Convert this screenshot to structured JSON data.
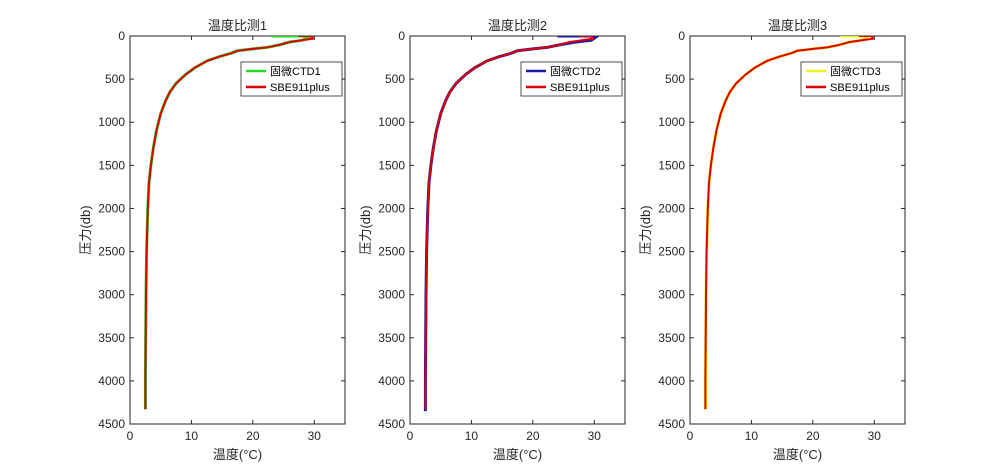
{
  "chart_data": [
    {
      "type": "line",
      "title": "温度比测1",
      "xlabel": "温度(°C)",
      "ylabel": "压力(db)",
      "xlim": [
        0,
        35
      ],
      "ylim": [
        0,
        4500
      ],
      "y_reversed": true,
      "xticks": [
        "0",
        "10",
        "20",
        "30"
      ],
      "yticks": [
        "0",
        "500",
        "1000",
        "1500",
        "2000",
        "2500",
        "3000",
        "3500",
        "4000",
        "4500"
      ],
      "legend_position": "top-right",
      "series": [
        {
          "name": "固微CTD1",
          "color": "#22dd22",
          "x": [
            23.0,
            29.5,
            28.0,
            26.0,
            24.5,
            22.5,
            20.0,
            17.5,
            16.5,
            14.5,
            12.5,
            10.5,
            9.0,
            7.5,
            6.5,
            5.8,
            5.0,
            4.3,
            3.8,
            3.4,
            3.1,
            2.9,
            2.7,
            2.6,
            2.55,
            2.5,
            2.5
          ],
          "y": [
            0,
            0,
            50,
            70,
            100,
            130,
            150,
            170,
            200,
            240,
            290,
            370,
            450,
            550,
            650,
            750,
            900,
            1100,
            1300,
            1500,
            1700,
            2000,
            2500,
            3000,
            3500,
            4000,
            4330
          ]
        },
        {
          "name": "SBE911plus",
          "color": "#dd0000",
          "x": [
            27.5,
            29.5,
            29.8,
            28.0,
            26.0,
            24.5,
            22.5,
            20.0,
            17.5,
            16.5,
            14.5,
            12.5,
            10.5,
            9.0,
            7.5,
            6.5,
            5.8,
            5.0,
            4.3,
            3.8,
            3.4,
            3.1,
            2.9,
            2.7,
            2.6,
            2.55,
            2.5,
            2.5
          ],
          "y": [
            0,
            0,
            30,
            50,
            70,
            100,
            130,
            150,
            170,
            200,
            240,
            290,
            370,
            450,
            550,
            650,
            750,
            900,
            1100,
            1300,
            1500,
            1700,
            2000,
            2500,
            3000,
            3500,
            4000,
            4330
          ]
        }
      ]
    },
    {
      "type": "line",
      "title": "温度比测2",
      "xlabel": "温度(°C)",
      "ylabel": "压力(db)",
      "xlim": [
        0,
        35
      ],
      "ylim": [
        0,
        4500
      ],
      "y_reversed": true,
      "xticks": [
        "0",
        "10",
        "20",
        "30"
      ],
      "yticks": [
        "0",
        "500",
        "1000",
        "1500",
        "2000",
        "2500",
        "3000",
        "3500",
        "4000",
        "4500"
      ],
      "legend_position": "top-right",
      "series": [
        {
          "name": "固微CTD2",
          "color": "#1a1aaa",
          "x": [
            24.0,
            30.5,
            29.5,
            27.0,
            24.5,
            22.5,
            20.0,
            17.5,
            16.5,
            14.5,
            12.5,
            10.5,
            9.0,
            7.5,
            6.5,
            5.8,
            5.0,
            4.3,
            3.8,
            3.4,
            3.1,
            2.9,
            2.7,
            2.6,
            2.55,
            2.5,
            2.5
          ],
          "y": [
            0,
            0,
            50,
            70,
            100,
            130,
            150,
            170,
            200,
            240,
            290,
            370,
            450,
            550,
            650,
            750,
            900,
            1100,
            1300,
            1500,
            1700,
            2000,
            2500,
            3000,
            3500,
            4000,
            4350
          ]
        },
        {
          "name": "SBE911plus",
          "color": "#dd0000",
          "x": [
            27.5,
            29.5,
            29.8,
            28.0,
            26.0,
            24.5,
            22.5,
            20.0,
            17.5,
            16.5,
            14.5,
            12.5,
            10.5,
            9.0,
            7.5,
            6.5,
            5.8,
            5.0,
            4.3,
            3.8,
            3.4,
            3.1,
            2.9,
            2.7,
            2.6,
            2.55,
            2.5,
            2.5
          ],
          "y": [
            0,
            0,
            30,
            50,
            70,
            100,
            130,
            150,
            170,
            200,
            240,
            290,
            370,
            450,
            550,
            650,
            750,
            900,
            1100,
            1300,
            1500,
            1700,
            2000,
            2500,
            3000,
            3500,
            4000,
            4330
          ]
        }
      ]
    },
    {
      "type": "line",
      "title": "温度比测3",
      "xlabel": "温度(°C)",
      "ylabel": "压力(db)",
      "xlim": [
        0,
        35
      ],
      "ylim": [
        0,
        4500
      ],
      "y_reversed": true,
      "xticks": [
        "0",
        "10",
        "20",
        "30"
      ],
      "yticks": [
        "0",
        "500",
        "1000",
        "1500",
        "2000",
        "2500",
        "3000",
        "3500",
        "4000",
        "4500"
      ],
      "legend_position": "top-right",
      "series": [
        {
          "name": "固微CTD3",
          "color": "#f2f21a",
          "x": [
            24.5,
            29.0,
            28.0,
            26.0,
            24.5,
            22.5,
            20.0,
            17.5,
            16.5,
            14.5,
            12.5,
            10.5,
            9.0,
            7.5,
            6.5,
            5.8,
            5.0,
            4.3,
            3.8,
            3.4,
            3.1,
            2.9,
            2.7,
            2.6,
            2.55,
            2.5,
            2.5
          ],
          "y": [
            0,
            0,
            50,
            70,
            100,
            130,
            150,
            170,
            200,
            240,
            290,
            370,
            450,
            550,
            650,
            750,
            900,
            1100,
            1300,
            1500,
            1700,
            2000,
            2500,
            3000,
            3500,
            4000,
            4330
          ]
        },
        {
          "name": "SBE911plus",
          "color": "#dd0000",
          "x": [
            27.5,
            29.5,
            29.8,
            28.0,
            26.0,
            24.5,
            22.5,
            20.0,
            17.5,
            16.5,
            14.5,
            12.5,
            10.5,
            9.0,
            7.5,
            6.5,
            5.8,
            5.0,
            4.3,
            3.8,
            3.4,
            3.1,
            2.9,
            2.7,
            2.6,
            2.55,
            2.5,
            2.5
          ],
          "y": [
            0,
            0,
            30,
            50,
            70,
            100,
            130,
            150,
            170,
            200,
            240,
            290,
            370,
            450,
            550,
            650,
            750,
            900,
            1100,
            1300,
            1500,
            1700,
            2000,
            2500,
            3000,
            3500,
            4000,
            4330
          ]
        }
      ]
    }
  ]
}
